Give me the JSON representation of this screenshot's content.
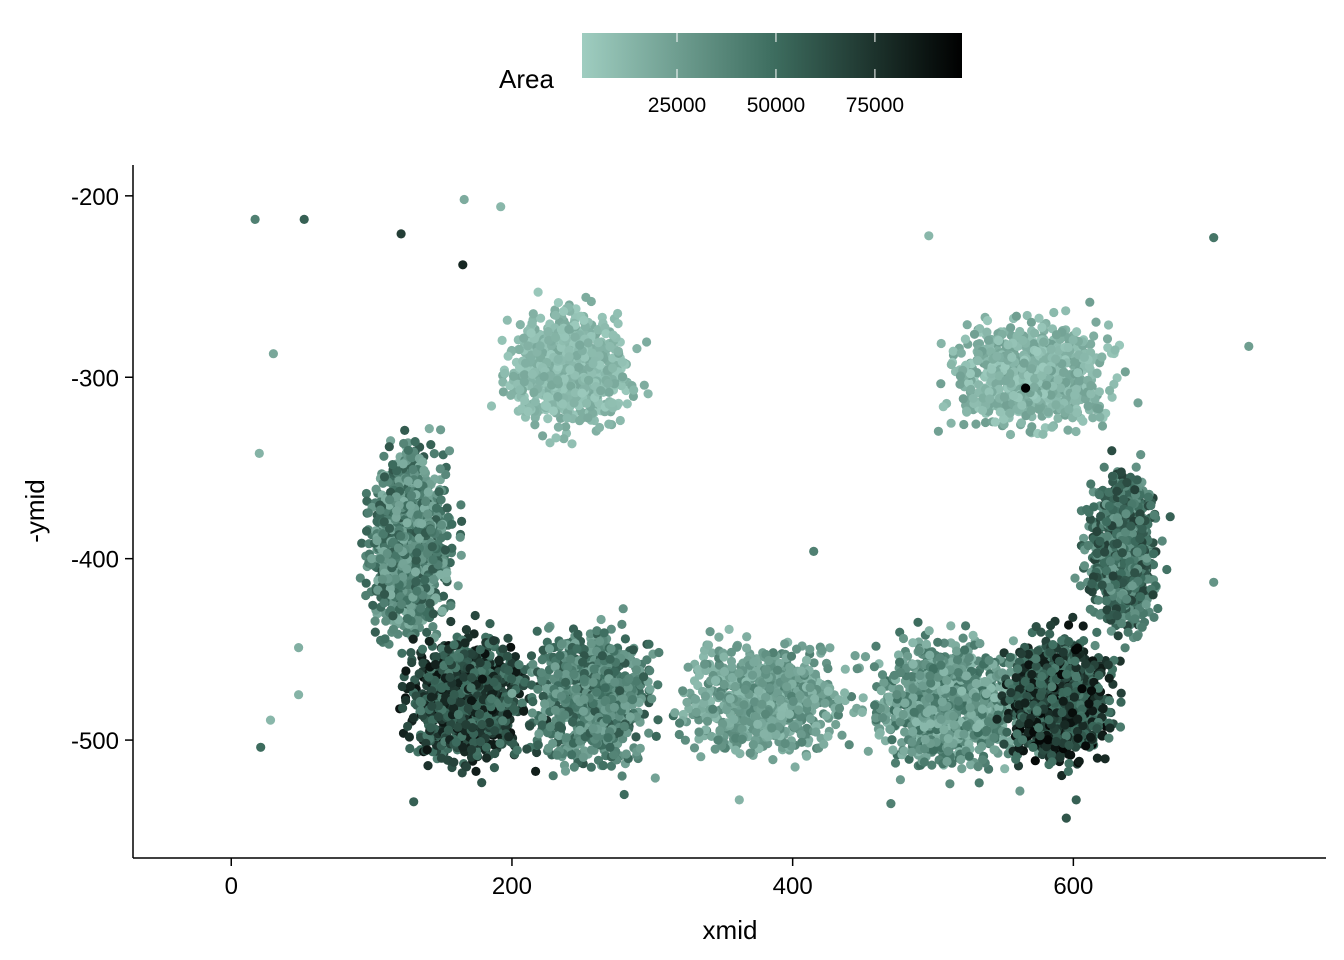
{
  "chart_data": {
    "type": "scatter",
    "title": "",
    "xlabel": "xmid",
    "ylabel": "-ymid",
    "xlim": [
      -70,
      780
    ],
    "ylim": [
      -565,
      -183
    ],
    "x_ticks": [
      0,
      200,
      400,
      600
    ],
    "x_tick_labels": [
      "0",
      "200",
      "400",
      "600"
    ],
    "y_ticks": [
      -200,
      -300,
      -400,
      -500
    ],
    "y_tick_labels": [
      "-200",
      "-300",
      "-400",
      "-500"
    ],
    "grid": false,
    "legend": {
      "title": "Area",
      "placement": "top",
      "type": "colorbar",
      "range": [
        1000,
        97000
      ],
      "ticks": [
        25000,
        50000,
        75000
      ],
      "tick_labels": [
        "25000",
        "50000",
        "75000"
      ],
      "color_low": "#9fcdc0",
      "color_mid": "#3e6e60",
      "color_high": "#000000"
    },
    "clusters": [
      {
        "region": "upper-left lobe",
        "x": [
          180,
          300
        ],
        "y": [
          -340,
          -250
        ],
        "area_range": [
          3000,
          20000
        ],
        "points": 900
      },
      {
        "region": "left arm",
        "x": [
          85,
          170
        ],
        "y": [
          -460,
          -320
        ],
        "area_range": [
          15000,
          60000
        ],
        "points": 1200
      },
      {
        "region": "lower-left dense band",
        "x": [
          110,
          230
        ],
        "y": [
          -525,
          -430
        ],
        "area_range": [
          40000,
          90000
        ],
        "points": 1200
      },
      {
        "region": "bottom band left",
        "x": [
          200,
          320
        ],
        "y": [
          -530,
          -425
        ],
        "area_range": [
          20000,
          60000
        ],
        "points": 900
      },
      {
        "region": "bottom band center",
        "x": [
          300,
          460
        ],
        "y": [
          -520,
          -435
        ],
        "area_range": [
          10000,
          40000
        ],
        "points": 800
      },
      {
        "region": "bottom band right",
        "x": [
          440,
          580
        ],
        "y": [
          -530,
          -430
        ],
        "area_range": [
          10000,
          50000
        ],
        "points": 1000
      },
      {
        "region": "lower-right dense band",
        "x": [
          540,
          640
        ],
        "y": [
          -525,
          -430
        ],
        "area_range": [
          40000,
          95000
        ],
        "points": 1100
      },
      {
        "region": "right arm",
        "x": [
          600,
          670
        ],
        "y": [
          -460,
          -330
        ],
        "area_range": [
          25000,
          70000
        ],
        "points": 900
      },
      {
        "region": "upper-right lobe",
        "x": [
          490,
          650
        ],
        "y": [
          -340,
          -255
        ],
        "area_range": [
          3000,
          25000
        ],
        "points": 900
      }
    ],
    "outliers": [
      {
        "x": 17,
        "y": -213,
        "area": 40000
      },
      {
        "x": 52,
        "y": -213,
        "area": 55000
      },
      {
        "x": 166,
        "y": -202,
        "area": 18000
      },
      {
        "x": 192,
        "y": -206,
        "area": 12000
      },
      {
        "x": 165,
        "y": -238,
        "area": 80000
      },
      {
        "x": 121,
        "y": -221,
        "area": 70000
      },
      {
        "x": 20,
        "y": -342,
        "area": 14000
      },
      {
        "x": 30,
        "y": -287,
        "area": 20000
      },
      {
        "x": 48,
        "y": -449,
        "area": 16000
      },
      {
        "x": 48,
        "y": -475,
        "area": 14000
      },
      {
        "x": 21,
        "y": -504,
        "area": 50000
      },
      {
        "x": 28,
        "y": -489,
        "area": 12000
      },
      {
        "x": 130,
        "y": -534,
        "area": 55000
      },
      {
        "x": 362,
        "y": -533,
        "area": 14000
      },
      {
        "x": 415,
        "y": -396,
        "area": 40000
      },
      {
        "x": 497,
        "y": -222,
        "area": 12000
      },
      {
        "x": 700,
        "y": -223,
        "area": 45000
      },
      {
        "x": 725,
        "y": -283,
        "area": 25000
      },
      {
        "x": 700,
        "y": -413,
        "area": 30000
      },
      {
        "x": 595,
        "y": -543,
        "area": 60000
      },
      {
        "x": 566,
        "y": -306,
        "area": 97000
      },
      {
        "x": 602,
        "y": -533,
        "area": 55000
      },
      {
        "x": 470,
        "y": -535,
        "area": 40000
      },
      {
        "x": 280,
        "y": -530,
        "area": 50000
      }
    ]
  }
}
